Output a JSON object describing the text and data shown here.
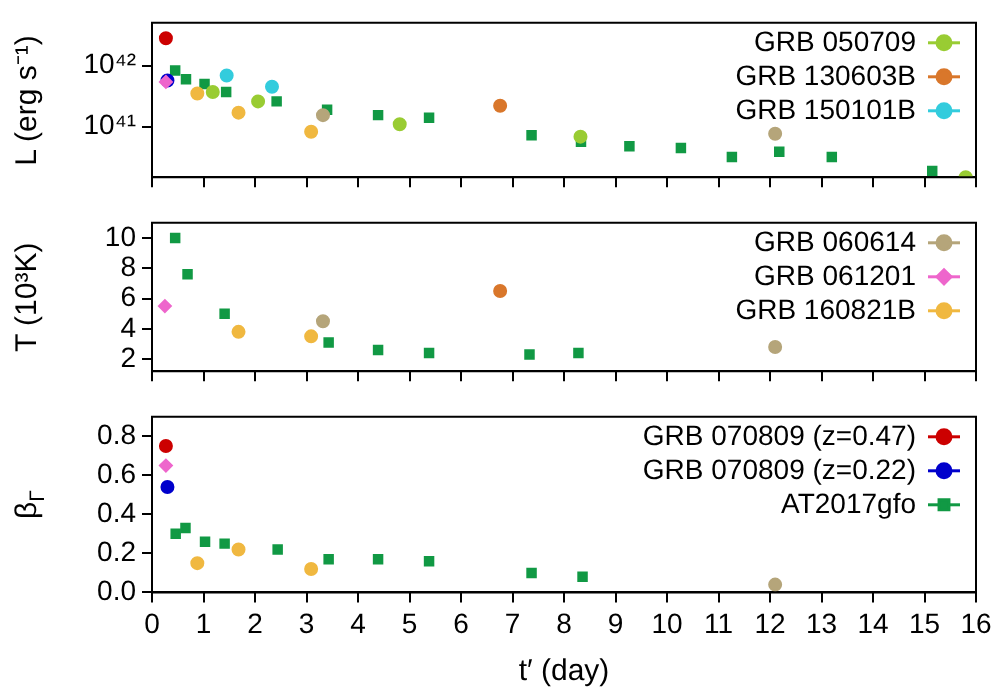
{
  "chart_data": [
    {
      "type": "scatter",
      "ylabel": "L (erg s⁻¹)",
      "log": "y",
      "xlim": [
        0,
        16
      ],
      "xticks": [
        0,
        1,
        2,
        3,
        4,
        5,
        6,
        7,
        8,
        9,
        10,
        11,
        12,
        13,
        14,
        15,
        16
      ],
      "ylim": [
        1.5e+40,
        5e+42
      ],
      "yticks": [
        {
          "value": 1e+41,
          "label": "10⁴¹"
        },
        {
          "value": 1e+42,
          "label": "10⁴²"
        }
      ],
      "tick_labels": "y",
      "legend": "top right",
      "series": [
        {
          "name": "GRB 050709",
          "color": "#99cc33",
          "marker": "circle",
          "x": [
            1.18,
            2.06,
            4.81,
            8.32,
            15.8
          ],
          "values": [
            3.7e+41,
            2.6e+41,
            1.1e+41,
            6.9e+40,
            1.5e+40
          ]
        },
        {
          "name": "GRB 130603B",
          "color": "#d9772b",
          "marker": "circle",
          "x": [
            6.76
          ],
          "values": [
            2.2e+41
          ]
        },
        {
          "name": "GRB 150101B",
          "color": "#33ccdd",
          "marker": "circle",
          "x": [
            1.45,
            2.33
          ],
          "values": [
            6.9e+41,
            4.5e+41
          ]
        },
        {
          "color": "#b5a57a",
          "marker": "circle",
          "x": [
            3.32,
            12.1
          ],
          "values": [
            1.55e+41,
            7.7e+40
          ]
        },
        {
          "color": "#ee66cc",
          "marker": "diamond",
          "x": [
            0.27
          ],
          "values": [
            5.4e+41
          ]
        },
        {
          "color": "#f0b840",
          "marker": "circle",
          "x": [
            0.88,
            1.68,
            3.09
          ],
          "values": [
            3.5e+41,
            1.7e+41,
            8.3e+40
          ]
        },
        {
          "color": "#cc0000",
          "marker": "circle",
          "x": [
            0.27
          ],
          "values": [
            2.8e+42
          ]
        },
        {
          "color": "#0000cc",
          "marker": "circle",
          "x": [
            0.3
          ],
          "values": [
            5.7e+41
          ]
        },
        {
          "color": "#119944",
          "marker": "square",
          "x": [
            0.45,
            0.66,
            1.02,
            1.44,
            2.42,
            3.4,
            4.39,
            5.38,
            7.37,
            8.33,
            9.27,
            10.27,
            11.26,
            12.18,
            13.2,
            15.15
          ],
          "values": [
            8.3e+41,
            6e+41,
            5e+41,
            3.7e+41,
            2.6e+41,
            1.9e+41,
            1.55e+41,
            1.4e+41,
            7.3e+40,
            5.7e+40,
            4.8e+40,
            4.5e+40,
            3.2e+40,
            3.9e+40,
            3.2e+40,
            1.9e+40
          ]
        }
      ]
    },
    {
      "type": "scatter",
      "ylabel": "T (10³K)",
      "xlim": [
        0,
        16
      ],
      "xticks": [
        0,
        1,
        2,
        3,
        4,
        5,
        6,
        7,
        8,
        9,
        10,
        11,
        12,
        13,
        14,
        15,
        16
      ],
      "ylim": [
        1.2,
        11
      ],
      "yticks": [
        2,
        4,
        6,
        8,
        10
      ],
      "tick_labels": "y",
      "legend": "top right",
      "series": [
        {
          "name": "GRB 060614",
          "color": "#b5a57a",
          "marker": "circle",
          "x": [
            3.32,
            12.1
          ],
          "values": [
            4.5,
            2.8
          ]
        },
        {
          "name": "GRB 061201",
          "color": "#ee66cc",
          "marker": "diamond",
          "x": [
            0.25
          ],
          "values": [
            5.5
          ]
        },
        {
          "name": "GRB 160821B",
          "color": "#f0b840",
          "marker": "circle",
          "x": [
            1.68,
            3.09
          ],
          "values": [
            3.8,
            3.5
          ]
        },
        {
          "color": "#d9772b",
          "marker": "circle",
          "x": [
            6.76
          ],
          "values": [
            6.5
          ]
        },
        {
          "color": "#119944",
          "marker": "square",
          "x": [
            0.45,
            0.69,
            1.41,
            3.43,
            4.39,
            5.38,
            7.33,
            8.28
          ],
          "values": [
            10,
            7.6,
            5,
            3.1,
            2.6,
            2.4,
            2.3,
            2.4
          ]
        }
      ]
    },
    {
      "type": "scatter",
      "ylabel": "β$_{Γ}$",
      "xlabel": "t′ (day)",
      "xlim": [
        0,
        16
      ],
      "xticks": [
        0,
        1,
        2,
        3,
        4,
        5,
        6,
        7,
        8,
        9,
        10,
        11,
        12,
        13,
        14,
        15,
        16
      ],
      "ylim": [
        0,
        0.9
      ],
      "yticks": [
        {
          "value": 0,
          "label": "0.0"
        },
        0.2,
        0.4,
        0.6,
        0.8
      ],
      "legend": "top right",
      "series": [
        {
          "name": "GRB 070809 (z=0.47)",
          "color": "#cc0000",
          "marker": "circle",
          "x": [
            0.27
          ],
          "values": [
            0.75
          ]
        },
        {
          "name": "GRB 070809 (z=0.22)",
          "color": "#0000cc",
          "marker": "circle",
          "x": [
            0.3
          ],
          "values": [
            0.54
          ]
        },
        {
          "name": "AT2017gfo",
          "color": "#119944",
          "marker": "square",
          "x": [
            0.46,
            0.65,
            1.03,
            1.41,
            2.44,
            3.43,
            4.39,
            5.38,
            7.37,
            8.36
          ],
          "values": [
            0.3,
            0.33,
            0.26,
            0.25,
            0.22,
            0.17,
            0.17,
            0.16,
            0.1,
            0.08
          ]
        },
        {
          "color": "#ee66cc",
          "marker": "diamond",
          "x": [
            0.27
          ],
          "values": [
            0.65
          ]
        },
        {
          "color": "#f0b840",
          "marker": "circle",
          "x": [
            0.88,
            1.68,
            3.09
          ],
          "values": [
            0.15,
            0.22,
            0.12
          ]
        },
        {
          "color": "#b5a57a",
          "marker": "circle",
          "x": [
            12.1
          ],
          "values": [
            0.04
          ]
        }
      ]
    }
  ]
}
